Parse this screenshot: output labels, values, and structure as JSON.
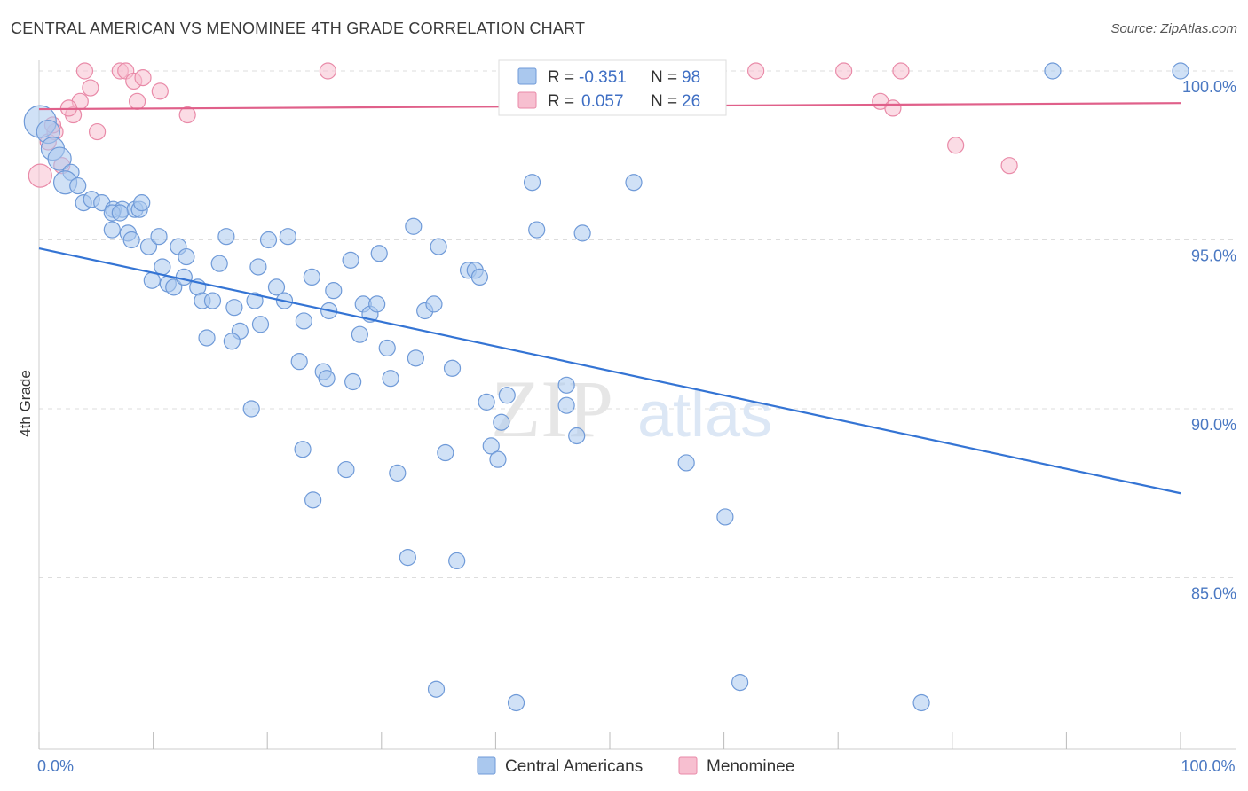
{
  "title": "CENTRAL AMERICAN VS MENOMINEE 4TH GRADE CORRELATION CHART",
  "source": "Source: ZipAtlas.com",
  "watermark": {
    "zip": "ZIP",
    "atlas": "atlas"
  },
  "colors": {
    "blue_fill": "#aac8ee",
    "blue_stroke": "#6f9ad8",
    "blue_line": "#3474d4",
    "pink_fill": "#f7bfd0",
    "pink_stroke": "#e98aa8",
    "pink_line": "#e0608a",
    "grid": "#dddddd",
    "axis_label": "#4a78c2"
  },
  "legend": {
    "rows": [
      {
        "r_label": "R =",
        "r_value": "-0.351",
        "n_label": "N =",
        "n_value": "98",
        "series": "blue"
      },
      {
        "r_label": "R =",
        "r_value": "0.057",
        "n_label": "N =",
        "n_value": "26",
        "series": "pink"
      }
    ]
  },
  "bottom_legend": [
    {
      "label": "Central Americans",
      "series": "blue"
    },
    {
      "label": "Menominee",
      "series": "pink"
    }
  ],
  "chart_data": {
    "type": "scatter",
    "title": "CENTRAL AMERICAN VS MENOMINEE 4TH GRADE CORRELATION CHART",
    "xlabel": "",
    "ylabel": "4th Grade",
    "xlim": [
      0,
      100
    ],
    "ylim": [
      80.3,
      100.8
    ],
    "x_tick_labels": [
      {
        "value": 0,
        "label": "0.0%"
      },
      {
        "value": 100,
        "label": "100.0%"
      }
    ],
    "y_ticks": [
      {
        "value": 85,
        "label": "85.0%"
      },
      {
        "value": 90,
        "label": "90.0%"
      },
      {
        "value": 95,
        "label": "95.0%"
      },
      {
        "value": 100,
        "label": "100.0%"
      }
    ],
    "grid": true,
    "legend_position": "top-center",
    "series": [
      {
        "name": "Central Americans",
        "color": "blue",
        "trend": {
          "x0": 0,
          "y0": 94.75,
          "x1": 100,
          "y1": 87.5
        },
        "points": [
          [
            0.1,
            98.5,
            3
          ],
          [
            0.8,
            98.2,
            2
          ],
          [
            1.2,
            97.7,
            2
          ],
          [
            1.8,
            97.4,
            2
          ],
          [
            2.8,
            97.0,
            1
          ],
          [
            2.3,
            96.7,
            2
          ],
          [
            3.4,
            96.6,
            1
          ],
          [
            3.9,
            96.1,
            1
          ],
          [
            4.6,
            96.2,
            1
          ],
          [
            5.5,
            96.1,
            1
          ],
          [
            6.5,
            95.9,
            1
          ],
          [
            7.3,
            95.9,
            1
          ],
          [
            8.4,
            95.9,
            1
          ],
          [
            8.8,
            95.9,
            1
          ],
          [
            9.0,
            96.1,
            1
          ],
          [
            6.4,
            95.8,
            1
          ],
          [
            7.1,
            95.8,
            1
          ],
          [
            6.4,
            95.3,
            1
          ],
          [
            7.8,
            95.2,
            1
          ],
          [
            8.1,
            95.0,
            1
          ],
          [
            9.6,
            94.8,
            1
          ],
          [
            10.5,
            95.1,
            1
          ],
          [
            12.2,
            94.8,
            1
          ],
          [
            16.4,
            95.1,
            1
          ],
          [
            20.1,
            95.0,
            1
          ],
          [
            21.8,
            95.1,
            1
          ],
          [
            10.8,
            94.2,
            1
          ],
          [
            12.9,
            94.5,
            1
          ],
          [
            15.8,
            94.3,
            1
          ],
          [
            19.2,
            94.2,
            1
          ],
          [
            9.9,
            93.8,
            1
          ],
          [
            11.3,
            93.7,
            1
          ],
          [
            11.8,
            93.6,
            1
          ],
          [
            12.7,
            93.9,
            1
          ],
          [
            13.9,
            93.6,
            1
          ],
          [
            14.3,
            93.2,
            1
          ],
          [
            15.2,
            93.2,
            1
          ],
          [
            17.1,
            93.0,
            1
          ],
          [
            18.9,
            93.2,
            1
          ],
          [
            20.8,
            93.6,
            1
          ],
          [
            21.5,
            93.2,
            1
          ],
          [
            23.9,
            93.9,
            1
          ],
          [
            25.8,
            93.5,
            1
          ],
          [
            27.3,
            94.4,
            1
          ],
          [
            29.8,
            94.6,
            1
          ],
          [
            32.8,
            95.4,
            1
          ],
          [
            35.0,
            94.8,
            1
          ],
          [
            37.6,
            94.1,
            1
          ],
          [
            38.2,
            94.1,
            1
          ],
          [
            38.6,
            93.9,
            1
          ],
          [
            25.4,
            92.9,
            1
          ],
          [
            28.4,
            93.1,
            1
          ],
          [
            29.0,
            92.8,
            1
          ],
          [
            29.6,
            93.1,
            1
          ],
          [
            33.8,
            92.9,
            1
          ],
          [
            34.6,
            93.1,
            1
          ],
          [
            23.2,
            92.6,
            1
          ],
          [
            19.4,
            92.5,
            1
          ],
          [
            17.6,
            92.3,
            1
          ],
          [
            14.7,
            92.1,
            1
          ],
          [
            16.9,
            92.0,
            1
          ],
          [
            28.1,
            92.2,
            1
          ],
          [
            30.5,
            91.8,
            1
          ],
          [
            33.0,
            91.5,
            1
          ],
          [
            22.8,
            91.4,
            1
          ],
          [
            24.9,
            91.1,
            1
          ],
          [
            25.2,
            90.9,
            1
          ],
          [
            27.5,
            90.8,
            1
          ],
          [
            30.8,
            90.9,
            1
          ],
          [
            36.2,
            91.2,
            1
          ],
          [
            39.2,
            90.2,
            1
          ],
          [
            41.0,
            90.4,
            1
          ],
          [
            40.5,
            89.6,
            1
          ],
          [
            46.2,
            90.7,
            1
          ],
          [
            46.2,
            90.1,
            1
          ],
          [
            18.6,
            90.0,
            1
          ],
          [
            23.1,
            88.8,
            1
          ],
          [
            26.9,
            88.2,
            1
          ],
          [
            31.4,
            88.1,
            1
          ],
          [
            35.6,
            88.7,
            1
          ],
          [
            39.6,
            88.9,
            1
          ],
          [
            40.2,
            88.5,
            1
          ],
          [
            47.1,
            89.2,
            1
          ],
          [
            24.0,
            87.3,
            1
          ],
          [
            32.3,
            85.6,
            1
          ],
          [
            36.6,
            85.5,
            1
          ],
          [
            43.2,
            96.7,
            1
          ],
          [
            43.6,
            95.3,
            1
          ],
          [
            47.6,
            95.2,
            1
          ],
          [
            52.1,
            96.7,
            1
          ],
          [
            56.7,
            88.4,
            1
          ],
          [
            60.1,
            86.8,
            1
          ],
          [
            34.8,
            81.7,
            1
          ],
          [
            41.8,
            81.3,
            1
          ],
          [
            61.4,
            81.9,
            1
          ],
          [
            77.3,
            81.3,
            1
          ],
          [
            88.8,
            100.0,
            1
          ],
          [
            100.0,
            100.0,
            1
          ]
        ]
      },
      {
        "name": "Menominee",
        "color": "pink",
        "trend": {
          "x0": 0,
          "y0": 98.87,
          "x1": 100,
          "y1": 99.05
        },
        "points": [
          [
            0.1,
            96.9,
            2
          ],
          [
            0.8,
            97.9,
            1
          ],
          [
            1.4,
            98.2,
            1
          ],
          [
            2.0,
            97.2,
            1
          ],
          [
            3.0,
            98.7,
            1
          ],
          [
            3.6,
            99.1,
            1
          ],
          [
            4.5,
            99.5,
            1
          ],
          [
            5.1,
            98.2,
            1
          ],
          [
            4.0,
            100.0,
            1
          ],
          [
            7.1,
            100.0,
            1
          ],
          [
            7.6,
            100.0,
            1
          ],
          [
            8.3,
            99.7,
            1
          ],
          [
            8.6,
            99.1,
            1
          ],
          [
            9.1,
            99.8,
            1
          ],
          [
            10.6,
            99.4,
            1
          ],
          [
            13.0,
            98.7,
            1
          ],
          [
            25.3,
            100.0,
            1
          ],
          [
            62.8,
            100.0,
            1
          ],
          [
            70.5,
            100.0,
            1
          ],
          [
            75.5,
            100.0,
            1
          ],
          [
            73.7,
            99.1,
            1
          ],
          [
            74.8,
            98.9,
            1
          ],
          [
            80.3,
            97.8,
            1
          ],
          [
            85.0,
            97.2,
            1
          ],
          [
            2.6,
            98.9,
            1
          ],
          [
            1.2,
            98.4,
            1
          ]
        ]
      }
    ]
  }
}
